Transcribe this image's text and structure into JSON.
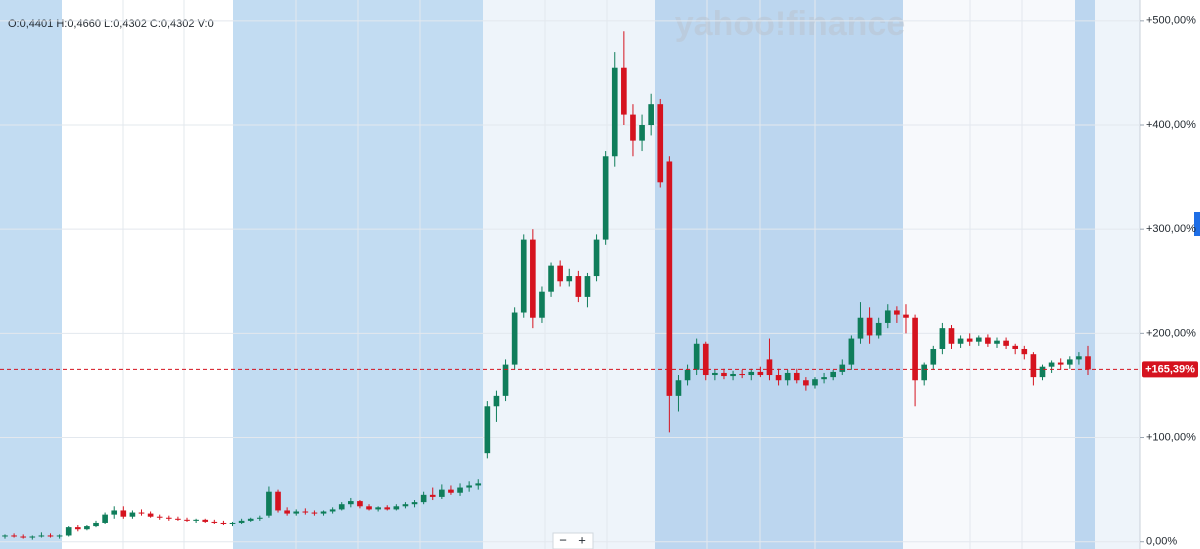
{
  "chart_data": {
    "type": "candlestick",
    "subtitle": "O:0,4401  H:0,4660  L:0,4302  C:0,4302  V:0",
    "watermark": "yahoo!finance",
    "zoom_out": "−",
    "zoom_in": "+",
    "up_color": "#0f7d5a",
    "down_color": "#d5131f",
    "last_value": 165.39,
    "last_label": "+165,39%",
    "ylim": [
      -7,
      520
    ],
    "yticks": [
      {
        "value": 0,
        "label": "0,00%"
      },
      {
        "value": 100,
        "label": "+100,00%"
      },
      {
        "value": 200,
        "label": "+200,00%"
      },
      {
        "value": 300,
        "label": "+300,00%"
      },
      {
        "value": 400,
        "label": "+400,00%"
      },
      {
        "value": 500,
        "label": "+500,00%"
      }
    ],
    "grid": true,
    "ohlc": [
      [
        5,
        7,
        3,
        6
      ],
      [
        6,
        8,
        4,
        5
      ],
      [
        5,
        7,
        3,
        4
      ],
      [
        4,
        6,
        2,
        5
      ],
      [
        5,
        9,
        4,
        6
      ],
      [
        6,
        8,
        4,
        5
      ],
      [
        5,
        7,
        3,
        6
      ],
      [
        6,
        15,
        5,
        14
      ],
      [
        14,
        16,
        10,
        12
      ],
      [
        12,
        16,
        11,
        15
      ],
      [
        15,
        20,
        14,
        18
      ],
      [
        18,
        28,
        17,
        26
      ],
      [
        26,
        34,
        22,
        30
      ],
      [
        30,
        34,
        22,
        24
      ],
      [
        24,
        30,
        22,
        28
      ],
      [
        28,
        31,
        25,
        27
      ],
      [
        27,
        29,
        23,
        24
      ],
      [
        24,
        26,
        21,
        23
      ],
      [
        23,
        25,
        20,
        22
      ],
      [
        22,
        24,
        20,
        21
      ],
      [
        21,
        23,
        19,
        20
      ],
      [
        20,
        22,
        18,
        21
      ],
      [
        21,
        22,
        18,
        19
      ],
      [
        19,
        21,
        17,
        18
      ],
      [
        18,
        20,
        16,
        17
      ],
      [
        17,
        19,
        15,
        18
      ],
      [
        18,
        22,
        17,
        20
      ],
      [
        20,
        23,
        19,
        22
      ],
      [
        22,
        25,
        20,
        23
      ],
      [
        25,
        53,
        23,
        48
      ],
      [
        48,
        50,
        28,
        30
      ],
      [
        30,
        33,
        25,
        27
      ],
      [
        27,
        31,
        25,
        29
      ],
      [
        29,
        32,
        26,
        28
      ],
      [
        28,
        30,
        25,
        27
      ],
      [
        27,
        30,
        25,
        29
      ],
      [
        29,
        33,
        27,
        31
      ],
      [
        31,
        38,
        30,
        36
      ],
      [
        36,
        42,
        33,
        39
      ],
      [
        39,
        40,
        32,
        34
      ],
      [
        34,
        36,
        30,
        31
      ],
      [
        31,
        34,
        29,
        33
      ],
      [
        33,
        35,
        30,
        31
      ],
      [
        31,
        36,
        30,
        34
      ],
      [
        34,
        38,
        32,
        36
      ],
      [
        36,
        40,
        33,
        38
      ],
      [
        38,
        48,
        36,
        45
      ],
      [
        45,
        52,
        40,
        43
      ],
      [
        43,
        55,
        41,
        50
      ],
      [
        50,
        54,
        45,
        47
      ],
      [
        47,
        56,
        44,
        52
      ],
      [
        52,
        58,
        48,
        54
      ],
      [
        54,
        60,
        50,
        56
      ],
      [
        85,
        135,
        80,
        130
      ],
      [
        130,
        145,
        115,
        140
      ],
      [
        140,
        175,
        135,
        170
      ],
      [
        170,
        225,
        165,
        220
      ],
      [
        220,
        295,
        215,
        290
      ],
      [
        290,
        300,
        205,
        215
      ],
      [
        215,
        245,
        210,
        240
      ],
      [
        240,
        268,
        235,
        265
      ],
      [
        265,
        270,
        245,
        250
      ],
      [
        250,
        262,
        245,
        255
      ],
      [
        255,
        260,
        230,
        235
      ],
      [
        235,
        258,
        225,
        255
      ],
      [
        255,
        295,
        250,
        290
      ],
      [
        290,
        375,
        285,
        370
      ],
      [
        370,
        470,
        360,
        455
      ],
      [
        455,
        490,
        400,
        410
      ],
      [
        410,
        420,
        370,
        385
      ],
      [
        385,
        410,
        375,
        400
      ],
      [
        400,
        430,
        390,
        420
      ],
      [
        420,
        425,
        340,
        345
      ],
      [
        365,
        370,
        105,
        140
      ],
      [
        140,
        160,
        125,
        155
      ],
      [
        155,
        170,
        150,
        165
      ],
      [
        165,
        195,
        160,
        190
      ],
      [
        190,
        192,
        155,
        160
      ],
      [
        160,
        165,
        155,
        162
      ],
      [
        162,
        166,
        156,
        159
      ],
      [
        159,
        164,
        155,
        161
      ],
      [
        161,
        165,
        157,
        160
      ],
      [
        160,
        166,
        155,
        163
      ],
      [
        163,
        168,
        158,
        160
      ],
      [
        175,
        195,
        155,
        160
      ],
      [
        160,
        166,
        150,
        155
      ],
      [
        155,
        165,
        150,
        162
      ],
      [
        162,
        166,
        152,
        155
      ],
      [
        155,
        158,
        145,
        150
      ],
      [
        150,
        158,
        147,
        156
      ],
      [
        156,
        162,
        152,
        158
      ],
      [
        158,
        165,
        155,
        163
      ],
      [
        163,
        175,
        160,
        170
      ],
      [
        170,
        198,
        165,
        195
      ],
      [
        195,
        230,
        190,
        215
      ],
      [
        215,
        225,
        190,
        198
      ],
      [
        198,
        215,
        195,
        210
      ],
      [
        210,
        228,
        205,
        222
      ],
      [
        222,
        226,
        210,
        218
      ],
      [
        218,
        228,
        200,
        215
      ],
      [
        215,
        218,
        130,
        155
      ],
      [
        155,
        172,
        150,
        170
      ],
      [
        170,
        188,
        165,
        185
      ],
      [
        185,
        210,
        180,
        205
      ],
      [
        205,
        208,
        185,
        190
      ],
      [
        190,
        198,
        186,
        195
      ],
      [
        195,
        200,
        188,
        192
      ],
      [
        192,
        198,
        188,
        196
      ],
      [
        196,
        199,
        187,
        190
      ],
      [
        190,
        196,
        186,
        193
      ],
      [
        193,
        196,
        185,
        188
      ],
      [
        188,
        190,
        180,
        185
      ],
      [
        185,
        188,
        175,
        180
      ],
      [
        180,
        182,
        150,
        158
      ],
      [
        158,
        170,
        155,
        168
      ],
      [
        168,
        174,
        162,
        172
      ],
      [
        172,
        176,
        165,
        170
      ],
      [
        170,
        178,
        166,
        175
      ],
      [
        175,
        182,
        170,
        178
      ],
      [
        178,
        188,
        160,
        165.39
      ]
    ]
  }
}
